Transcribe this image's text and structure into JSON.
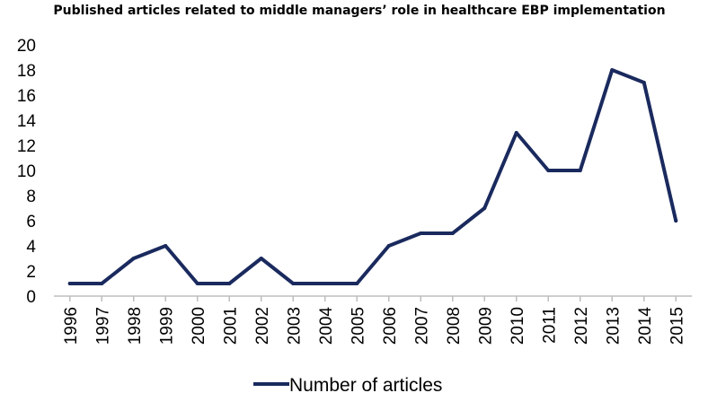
{
  "chart_data": {
    "type": "line",
    "title": "Published articles related to middle managers’ role in healthcare EBP implementation",
    "xlabel": "",
    "ylabel": "",
    "x": [
      "1996",
      "1997",
      "1998",
      "1999",
      "2000",
      "2001",
      "2002",
      "2003",
      "2004",
      "2005",
      "2006",
      "2007",
      "2008",
      "2009",
      "2010",
      "2011",
      "2012",
      "2013",
      "2014",
      "2015"
    ],
    "series": [
      {
        "name": "Number of articles",
        "color": "#1a2a5e",
        "values": [
          1,
          1,
          3,
          4,
          1,
          1,
          3,
          1,
          1,
          1,
          4,
          5,
          5,
          7,
          13,
          10,
          10,
          18,
          17,
          6
        ]
      }
    ],
    "ylim": [
      0,
      20
    ],
    "yticks": [
      0,
      2,
      4,
      6,
      8,
      10,
      12,
      14,
      16,
      18,
      20
    ],
    "grid": false,
    "legend_position": "bottom"
  }
}
